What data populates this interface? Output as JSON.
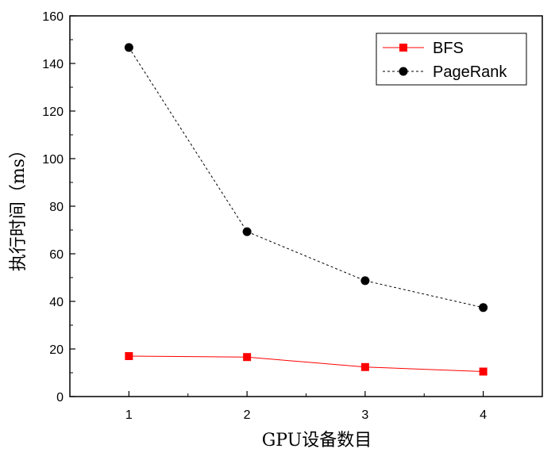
{
  "chart_data": {
    "type": "line",
    "xlabel": "GPU设备数目",
    "ylabel": "执行时间（ms）",
    "x": [
      1,
      2,
      3,
      4
    ],
    "xlim": [
      0.5,
      4.5
    ],
    "ylim": [
      0,
      160
    ],
    "xticks": [
      1,
      2,
      3,
      4
    ],
    "yticks": [
      0,
      20,
      40,
      60,
      80,
      100,
      120,
      140,
      160
    ],
    "grid": false,
    "legend_position": "top-right",
    "series": [
      {
        "name": "BFS",
        "values": [
          17,
          16.6,
          12.4,
          10.5
        ],
        "color": "#ff0000",
        "marker": "square",
        "line_style": "solid"
      },
      {
        "name": "PageRank",
        "values": [
          146.7,
          69.3,
          48.7,
          37.4
        ],
        "color": "#000000",
        "marker": "circle",
        "line_style": "dashed"
      }
    ]
  }
}
